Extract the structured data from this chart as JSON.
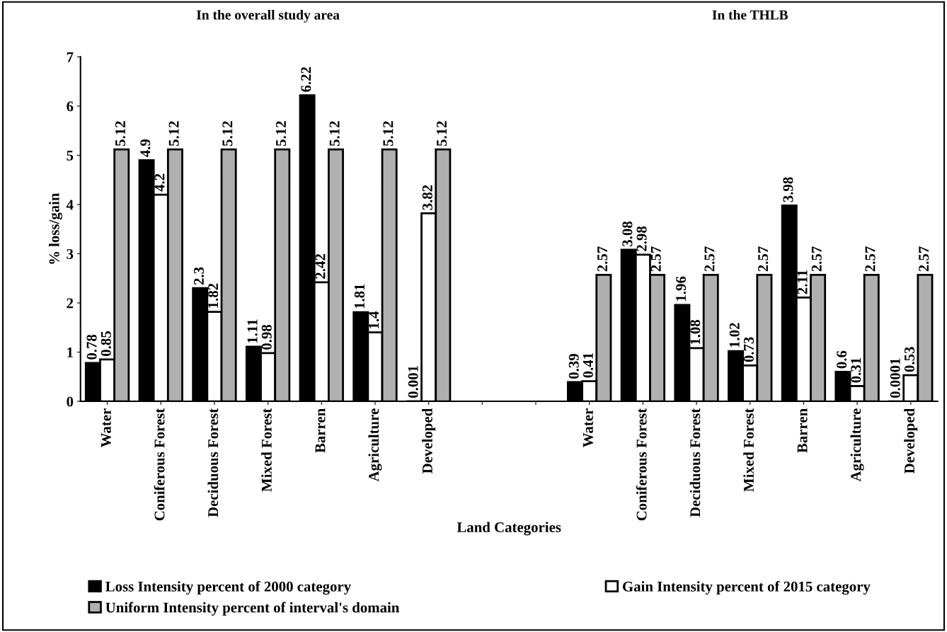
{
  "chart_data": {
    "type": "bar",
    "xlabel": "Land Categories",
    "ylabel": "% loss/gain",
    "annotations": [
      "In the overall study area",
      "In the THLB"
    ],
    "categories": [
      "Water",
      "Coniferous Forest",
      "Deciduous Forest",
      "Mixed Forest",
      "Barren",
      "Agriculture",
      "Developed",
      null,
      null,
      "Water",
      "Coniferous Forest",
      "Deciduous Forest",
      "Mixed Forest",
      "Barren",
      "Agriculture",
      "Developed"
    ],
    "series": [
      {
        "name": "Loss Intensity percent of 2000 category",
        "color": "#000000",
        "values": [
          0.78,
          4.9,
          2.3,
          1.11,
          6.22,
          1.81,
          0.001,
          null,
          null,
          0.39,
          3.08,
          1.96,
          1.02,
          3.98,
          0.6,
          0.0001
        ]
      },
      {
        "name": "Gain Intensity percent of 2015 category",
        "color": "#ffffff",
        "values": [
          0.85,
          4.2,
          1.82,
          0.98,
          2.42,
          1.4,
          3.82,
          null,
          null,
          0.41,
          2.98,
          1.08,
          0.73,
          2.11,
          0.31,
          0.53
        ]
      },
      {
        "name": "Uniform Intensity percent of interval's domain",
        "color": "#b0b0b0",
        "values": [
          5.12,
          5.12,
          5.12,
          5.12,
          5.12,
          5.12,
          5.12,
          null,
          null,
          2.57,
          2.57,
          2.57,
          2.57,
          2.57,
          2.57,
          2.57
        ]
      }
    ],
    "ylim": [
      0,
      7
    ],
    "yticks": [
      0,
      1,
      2,
      3,
      4,
      5,
      6,
      7
    ],
    "grid": false,
    "legend": "bottom",
    "data_labels": true
  }
}
